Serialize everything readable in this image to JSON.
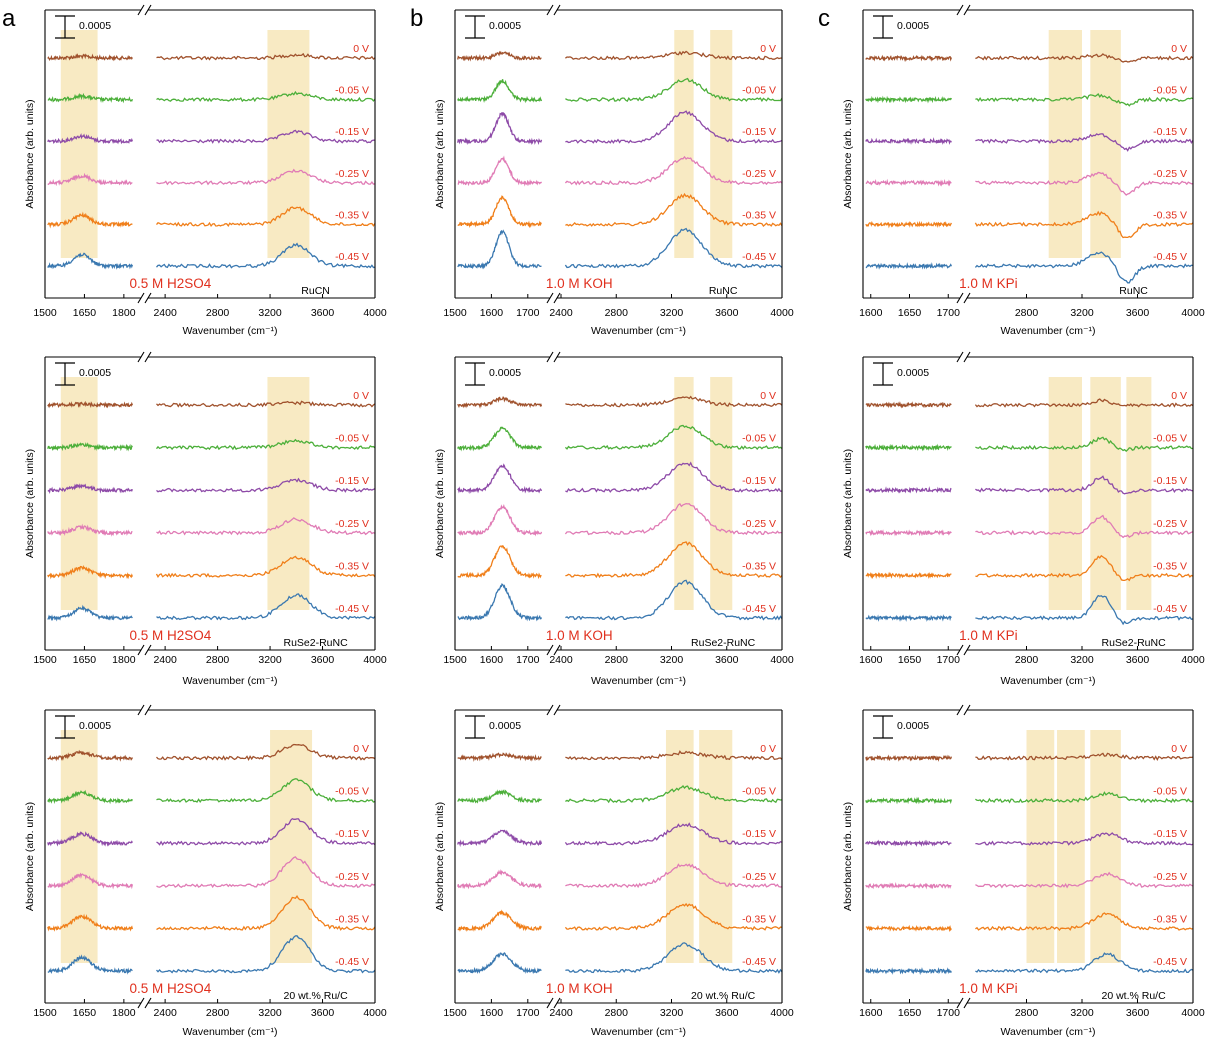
{
  "panel_letters": [
    "a",
    "b",
    "c"
  ],
  "ylabel": "Absorbance (arb. units)",
  "xlabel": "Wavenumber (cm⁻¹)",
  "scale_bar": "0.0005",
  "potentials": [
    "0 V",
    "-0.05 V",
    "-0.15 V",
    "-0.25 V",
    "-0.35 V",
    "-0.45 V"
  ],
  "colors": {
    "0 V": "#a0522d",
    "-0.05 V": "#4caf3a",
    "-0.15 V": "#8e4ba8",
    "-0.25 V": "#e07bb5",
    "-0.35 V": "#f07f1a",
    "-0.45 V": "#3a78b0",
    "label_red": "#e0301e",
    "highlight": "#f7e6b8"
  },
  "chart_data": [
    {
      "type": "line",
      "panel": "a",
      "row": 1,
      "electrolyte": "0.5 M H2SO4",
      "sample": "RuCN",
      "left_ticks": [
        "1500",
        "1650",
        "1800"
      ],
      "right_ticks": [
        "2400",
        "2800",
        "3200",
        "3600",
        "4000"
      ],
      "xlim_left": [
        1500,
        1850
      ],
      "xlim_right": [
        2300,
        4000
      ],
      "highlights": [
        [
          1560,
          1700
        ],
        [
          3180,
          3500
        ]
      ],
      "peaks": [
        {
          "x": 1640,
          "w": 45,
          "a": 0.3
        },
        {
          "x": 3400,
          "w": 150,
          "a": 0.55
        }
      ],
      "series": [
        {
          "name": "0 V",
          "scale": 0.15
        },
        {
          "name": "-0.05 V",
          "scale": 0.3
        },
        {
          "name": "-0.15 V",
          "scale": 0.45
        },
        {
          "name": "-0.25 V",
          "scale": 0.6
        },
        {
          "name": "-0.35 V",
          "scale": 0.8
        },
        {
          "name": "-0.45 V",
          "scale": 1.0
        }
      ]
    },
    {
      "type": "line",
      "panel": "b",
      "row": 1,
      "electrolyte": "1.0 M KOH",
      "sample": "RuNC",
      "left_ticks": [
        "1500",
        "1600",
        "1700"
      ],
      "right_ticks": [
        "2400",
        "2800",
        "3200",
        "3600",
        "4000"
      ],
      "xlim_left": [
        1500,
        1750
      ],
      "xlim_right": [
        2400,
        4000
      ],
      "highlights": [
        [
          3220,
          3360
        ],
        [
          3480,
          3640
        ]
      ],
      "peaks": [
        {
          "x": 1630,
          "w": 25,
          "a": 0.9
        },
        {
          "x": 3300,
          "w": 170,
          "a": 0.95
        }
      ],
      "series": [
        {
          "name": "0 V",
          "scale": 0.15
        },
        {
          "name": "-0.05 V",
          "scale": 0.55
        },
        {
          "name": "-0.15 V",
          "scale": 0.8
        },
        {
          "name": "-0.25 V",
          "scale": 0.7
        },
        {
          "name": "-0.35 V",
          "scale": 0.8
        },
        {
          "name": "-0.45 V",
          "scale": 1.0
        }
      ]
    },
    {
      "type": "line",
      "panel": "c",
      "row": 1,
      "electrolyte": "1.0 M KPi",
      "sample": "RuNC",
      "left_ticks": [
        "1600",
        "1650",
        "1700"
      ],
      "right_ticks": [
        "2800",
        "3200",
        "3600",
        "4000"
      ],
      "xlim_left": [
        1590,
        1710
      ],
      "xlim_right": [
        2400,
        4000
      ],
      "highlights": [
        [
          2960,
          3200
        ],
        [
          3260,
          3480
        ]
      ],
      "peaks": [
        {
          "x": 3320,
          "w": 120,
          "a": 0.35
        },
        {
          "x": 3520,
          "w": 80,
          "a": -0.45
        }
      ],
      "series": [
        {
          "name": "0 V",
          "scale": 0.2
        },
        {
          "name": "-0.05 V",
          "scale": 0.3
        },
        {
          "name": "-0.15 V",
          "scale": 0.5
        },
        {
          "name": "-0.25 V",
          "scale": 0.7
        },
        {
          "name": "-0.35 V",
          "scale": 0.85
        },
        {
          "name": "-0.45 V",
          "scale": 1.0
        }
      ]
    },
    {
      "type": "line",
      "panel": "a",
      "row": 2,
      "electrolyte": "0.5 M H2SO4",
      "sample": "RuSe2-RuNC",
      "left_ticks": [
        "1500",
        "1650",
        "1800"
      ],
      "right_ticks": [
        "2400",
        "2800",
        "3200",
        "3600",
        "4000"
      ],
      "xlim_left": [
        1500,
        1850
      ],
      "xlim_right": [
        2300,
        4000
      ],
      "highlights": [
        [
          1560,
          1700
        ],
        [
          3180,
          3500
        ]
      ],
      "peaks": [
        {
          "x": 1640,
          "w": 45,
          "a": 0.25
        },
        {
          "x": 3400,
          "w": 160,
          "a": 0.6
        }
      ],
      "series": [
        {
          "name": "0 V",
          "scale": 0.1
        },
        {
          "name": "-0.05 V",
          "scale": 0.3
        },
        {
          "name": "-0.15 V",
          "scale": 0.45
        },
        {
          "name": "-0.25 V",
          "scale": 0.6
        },
        {
          "name": "-0.35 V",
          "scale": 0.8
        },
        {
          "name": "-0.45 V",
          "scale": 1.0
        }
      ]
    },
    {
      "type": "line",
      "panel": "b",
      "row": 2,
      "electrolyte": "1.0 M KOH",
      "sample": "RuSe2-RuNC",
      "left_ticks": [
        "1500",
        "1600",
        "1700"
      ],
      "right_ticks": [
        "2400",
        "2800",
        "3200",
        "3600",
        "4000"
      ],
      "xlim_left": [
        1500,
        1750
      ],
      "xlim_right": [
        2400,
        4000
      ],
      "highlights": [
        [
          3220,
          3360
        ],
        [
          3480,
          3640
        ]
      ],
      "peaks": [
        {
          "x": 1630,
          "w": 30,
          "a": 0.85
        },
        {
          "x": 3300,
          "w": 170,
          "a": 0.95
        }
      ],
      "series": [
        {
          "name": "0 V",
          "scale": 0.2
        },
        {
          "name": "-0.05 V",
          "scale": 0.6
        },
        {
          "name": "-0.15 V",
          "scale": 0.75
        },
        {
          "name": "-0.25 V",
          "scale": 0.8
        },
        {
          "name": "-0.35 V",
          "scale": 0.9
        },
        {
          "name": "-0.45 V",
          "scale": 1.0
        }
      ]
    },
    {
      "type": "line",
      "panel": "c",
      "row": 2,
      "electrolyte": "1.0 M KPi",
      "sample": "RuSe2-RuNC",
      "left_ticks": [
        "1600",
        "1650",
        "1700"
      ],
      "right_ticks": [
        "2800",
        "3200",
        "3600",
        "4000"
      ],
      "xlim_left": [
        1590,
        1710
      ],
      "xlim_right": [
        2400,
        4000
      ],
      "highlights": [
        [
          2960,
          3200
        ],
        [
          3260,
          3480
        ],
        [
          3520,
          3700
        ]
      ],
      "peaks": [
        {
          "x": 3340,
          "w": 90,
          "a": 0.6
        },
        {
          "x": 3500,
          "w": 70,
          "a": -0.15
        }
      ],
      "series": [
        {
          "name": "0 V",
          "scale": 0.2
        },
        {
          "name": "-0.05 V",
          "scale": 0.4
        },
        {
          "name": "-0.15 V",
          "scale": 0.55
        },
        {
          "name": "-0.25 V",
          "scale": 0.7
        },
        {
          "name": "-0.35 V",
          "scale": 0.85
        },
        {
          "name": "-0.45 V",
          "scale": 1.0
        }
      ]
    },
    {
      "type": "line",
      "panel": "a",
      "row": 3,
      "electrolyte": "0.5 M H2SO4",
      "sample": "20 wt.% Ru/C",
      "left_ticks": [
        "1500",
        "1650",
        "1800"
      ],
      "right_ticks": [
        "2400",
        "2800",
        "3200",
        "3600",
        "4000"
      ],
      "xlim_left": [
        1500,
        1850
      ],
      "xlim_right": [
        2300,
        4000
      ],
      "highlights": [
        [
          1560,
          1700
        ],
        [
          3200,
          3520
        ]
      ],
      "peaks": [
        {
          "x": 1640,
          "w": 50,
          "a": 0.35
        },
        {
          "x": 3400,
          "w": 150,
          "a": 0.9
        }
      ],
      "series": [
        {
          "name": "0 V",
          "scale": 0.4
        },
        {
          "name": "-0.05 V",
          "scale": 0.6
        },
        {
          "name": "-0.15 V",
          "scale": 0.7
        },
        {
          "name": "-0.25 V",
          "scale": 0.8
        },
        {
          "name": "-0.35 V",
          "scale": 0.9
        },
        {
          "name": "-0.45 V",
          "scale": 1.0
        }
      ]
    },
    {
      "type": "line",
      "panel": "b",
      "row": 3,
      "electrolyte": "1.0 M KOH",
      "sample": "20 wt.% Ru/C",
      "left_ticks": [
        "1500",
        "1600",
        "1700"
      ],
      "right_ticks": [
        "2400",
        "2800",
        "3200",
        "3600",
        "4000"
      ],
      "xlim_left": [
        1500,
        1750
      ],
      "xlim_right": [
        2400,
        4000
      ],
      "highlights": [
        [
          3160,
          3360
        ],
        [
          3400,
          3640
        ]
      ],
      "peaks": [
        {
          "x": 1630,
          "w": 35,
          "a": 0.45
        },
        {
          "x": 3300,
          "w": 180,
          "a": 0.7
        }
      ],
      "series": [
        {
          "name": "0 V",
          "scale": 0.2
        },
        {
          "name": "-0.05 V",
          "scale": 0.5
        },
        {
          "name": "-0.15 V",
          "scale": 0.7
        },
        {
          "name": "-0.25 V",
          "scale": 0.8
        },
        {
          "name": "-0.35 V",
          "scale": 0.9
        },
        {
          "name": "-0.45 V",
          "scale": 1.0
        }
      ]
    },
    {
      "type": "line",
      "panel": "c",
      "row": 3,
      "electrolyte": "1.0 M KPi",
      "sample": "20 wt.% Ru/C",
      "left_ticks": [
        "1600",
        "1650",
        "1700"
      ],
      "right_ticks": [
        "2800",
        "3200",
        "3600",
        "4000"
      ],
      "xlim_left": [
        1590,
        1710
      ],
      "xlim_right": [
        2400,
        4000
      ],
      "highlights": [
        [
          2800,
          3000
        ],
        [
          3020,
          3220
        ],
        [
          3260,
          3480
        ]
      ],
      "peaks": [
        {
          "x": 3380,
          "w": 130,
          "a": 0.45
        }
      ],
      "series": [
        {
          "name": "0 V",
          "scale": 0.2
        },
        {
          "name": "-0.05 V",
          "scale": 0.4
        },
        {
          "name": "-0.15 V",
          "scale": 0.55
        },
        {
          "name": "-0.25 V",
          "scale": 0.7
        },
        {
          "name": "-0.35 V",
          "scale": 0.85
        },
        {
          "name": "-0.45 V",
          "scale": 1.0
        }
      ]
    }
  ]
}
